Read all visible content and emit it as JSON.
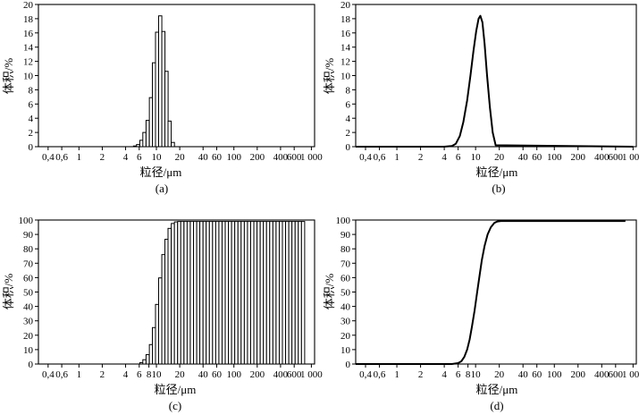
{
  "chart_data": [
    {
      "panel": "(a)",
      "type": "bar",
      "xscale": "log",
      "xlabel": "粒径/μm",
      "ylabel": "体积/%",
      "xlim": [
        0.3,
        1100
      ],
      "ylim": [
        0,
        20
      ],
      "yticks": [
        0,
        2,
        4,
        6,
        8,
        10,
        12,
        14,
        16,
        18,
        20
      ],
      "xtick_labels": [
        {
          "v": 0.4,
          "t": "0,4"
        },
        {
          "v": 0.6,
          "t": "0,6"
        },
        {
          "v": 1,
          "t": "1"
        },
        {
          "v": 2,
          "t": "2"
        },
        {
          "v": 4,
          "t": "4"
        },
        {
          "v": 6,
          "t": "6"
        },
        {
          "v": 10,
          "t": "10"
        },
        {
          "v": 20,
          "t": "20"
        },
        {
          "v": 40,
          "t": "40"
        },
        {
          "v": 60,
          "t": "60"
        },
        {
          "v": 100,
          "t": "100"
        },
        {
          "v": 200,
          "t": "200"
        },
        {
          "v": 400,
          "t": "400"
        },
        {
          "v": 600,
          "t": "600"
        },
        {
          "v": 1000,
          "t": "1 000"
        }
      ],
      "bin_ratio": 1.099,
      "x": [
        5.3,
        5.8,
        6.4,
        7.0,
        7.7,
        8.5,
        9.3,
        10.2,
        11.2,
        12.3,
        13.5,
        14.8,
        16.3
      ],
      "values": [
        0.1,
        0.3,
        0.9,
        2.0,
        3.7,
        6.9,
        11.8,
        16.1,
        18.4,
        16.2,
        10.6,
        3.6,
        0.6
      ]
    },
    {
      "panel": "(b)",
      "type": "line",
      "xscale": "log",
      "xlabel": "粒径/μm",
      "ylabel": "体积/%",
      "xlim": [
        0.3,
        1100
      ],
      "ylim": [
        0,
        20
      ],
      "yticks": [
        0,
        2,
        4,
        6,
        8,
        10,
        12,
        14,
        16,
        18,
        20
      ],
      "xtick_labels": [
        {
          "v": 0.4,
          "t": "0,4"
        },
        {
          "v": 0.6,
          "t": "0,6"
        },
        {
          "v": 1,
          "t": "1"
        },
        {
          "v": 2,
          "t": "2"
        },
        {
          "v": 4,
          "t": "4"
        },
        {
          "v": 6,
          "t": "6"
        },
        {
          "v": 10,
          "t": "10"
        },
        {
          "v": 20,
          "t": "20"
        },
        {
          "v": 40,
          "t": "40"
        },
        {
          "v": 60,
          "t": "60"
        },
        {
          "v": 100,
          "t": "100"
        },
        {
          "v": 200,
          "t": "200"
        },
        {
          "v": 400,
          "t": "400"
        },
        {
          "v": 600,
          "t": "600"
        },
        {
          "v": 1000,
          "t": "1 000"
        }
      ],
      "x": [
        0.3,
        4.0,
        5.0,
        5.6,
        6.3,
        7.0,
        7.8,
        8.6,
        9.4,
        10.2,
        10.9,
        11.5,
        12.2,
        13.0,
        14.0,
        15.2,
        16.5,
        18.0,
        1000
      ],
      "y": [
        0,
        0,
        0.1,
        0.4,
        1.5,
        3.5,
        6.5,
        10.0,
        13.5,
        16.3,
        18.0,
        18.4,
        17.5,
        14.5,
        10.0,
        5.5,
        2.0,
        0.2,
        0
      ]
    },
    {
      "panel": "(c)",
      "type": "bar",
      "xscale": "log",
      "xlabel": "粒径/μm",
      "ylabel": "体积/%",
      "xlim": [
        0.3,
        1100
      ],
      "ylim": [
        0,
        100
      ],
      "yticks": [
        0,
        10,
        20,
        30,
        40,
        50,
        60,
        70,
        80,
        90,
        100
      ],
      "xtick_labels": [
        {
          "v": 0.4,
          "t": "0,4"
        },
        {
          "v": 0.6,
          "t": "0,6"
        },
        {
          "v": 1,
          "t": "1"
        },
        {
          "v": 2,
          "t": "2"
        },
        {
          "v": 4,
          "t": "4"
        },
        {
          "v": 6,
          "t": "6"
        },
        {
          "v": 8,
          "t": "8"
        },
        {
          "v": 10,
          "t": "10"
        },
        {
          "v": 20,
          "t": "20"
        },
        {
          "v": 40,
          "t": "40"
        },
        {
          "v": 60,
          "t": "60"
        },
        {
          "v": 100,
          "t": "100"
        },
        {
          "v": 200,
          "t": "200"
        },
        {
          "v": 400,
          "t": "400"
        },
        {
          "v": 600,
          "t": "600"
        },
        {
          "v": 1000,
          "t": "1 000"
        }
      ],
      "bin_ratio": 1.099,
      "x": [
        6.4,
        7.0,
        7.7,
        8.5,
        9.3,
        10.2,
        11.2,
        12.3,
        13.5,
        14.8,
        16.3,
        17.9,
        19.7,
        21.6,
        23.8,
        26.1,
        28.7,
        31.6,
        34.7,
        38.1,
        41.9,
        46.0,
        50.6,
        55.6,
        61.1,
        67.1,
        73.8,
        81.1,
        89.1,
        97.9,
        107.6,
        118.3,
        130.0,
        142.9,
        157.0,
        172.6,
        189.6,
        208.4,
        229.1,
        251.7,
        276.6,
        304.0,
        334.1,
        367.2,
        403.5,
        443.5,
        487.4,
        535.6,
        588.6,
        646.9,
        710.9,
        781.3
      ],
      "values": [
        1.0,
        3.0,
        6.5,
        13.5,
        25.3,
        41.4,
        59.8,
        76.0,
        86.6,
        94.2,
        97.6,
        98.7,
        99.0,
        99.0,
        99.0,
        99.0,
        99.0,
        99.0,
        99.0,
        99.0,
        99.0,
        99.0,
        99.0,
        99.0,
        99.0,
        99.0,
        99.0,
        99.0,
        99.0,
        99.0,
        99.0,
        99.0,
        99.0,
        99.0,
        99.0,
        99.0,
        99.0,
        99.0,
        99.0,
        99.0,
        99.0,
        99.0,
        99.0,
        99.0,
        99.0,
        99.0,
        99.0,
        99.0,
        99.0,
        99.0,
        99.0,
        99.0
      ]
    },
    {
      "panel": "(d)",
      "type": "line",
      "xscale": "log",
      "xlabel": "粒径/μm",
      "ylabel": "体积/%",
      "xlim": [
        0.3,
        1100
      ],
      "ylim": [
        0,
        100
      ],
      "yticks": [
        0,
        10,
        20,
        30,
        40,
        50,
        60,
        70,
        80,
        90,
        100
      ],
      "xtick_labels": [
        {
          "v": 0.4,
          "t": "0,4"
        },
        {
          "v": 0.6,
          "t": "0,6"
        },
        {
          "v": 1,
          "t": "1"
        },
        {
          "v": 2,
          "t": "2"
        },
        {
          "v": 4,
          "t": "4"
        },
        {
          "v": 6,
          "t": "6"
        },
        {
          "v": 8,
          "t": "8"
        },
        {
          "v": 10,
          "t": "10"
        },
        {
          "v": 20,
          "t": "20"
        },
        {
          "v": 40,
          "t": "40"
        },
        {
          "v": 60,
          "t": "60"
        },
        {
          "v": 100,
          "t": "100"
        },
        {
          "v": 200,
          "t": "200"
        },
        {
          "v": 400,
          "t": "400"
        },
        {
          "v": 600,
          "t": "600"
        },
        {
          "v": 1000,
          "t": "1 000"
        }
      ],
      "x": [
        0.3,
        5.0,
        6.0,
        6.6,
        7.2,
        7.8,
        8.4,
        9.0,
        9.7,
        10.4,
        11.2,
        12.0,
        13.0,
        14.2,
        15.6,
        17.3,
        19.0,
        21.0,
        800
      ],
      "y": [
        0,
        0,
        0.6,
        2.0,
        5.0,
        10.0,
        17.0,
        26.0,
        37.0,
        49.0,
        61.0,
        72.0,
        82.0,
        90.0,
        95.0,
        98.0,
        99.0,
        99.3,
        99.3
      ]
    }
  ]
}
